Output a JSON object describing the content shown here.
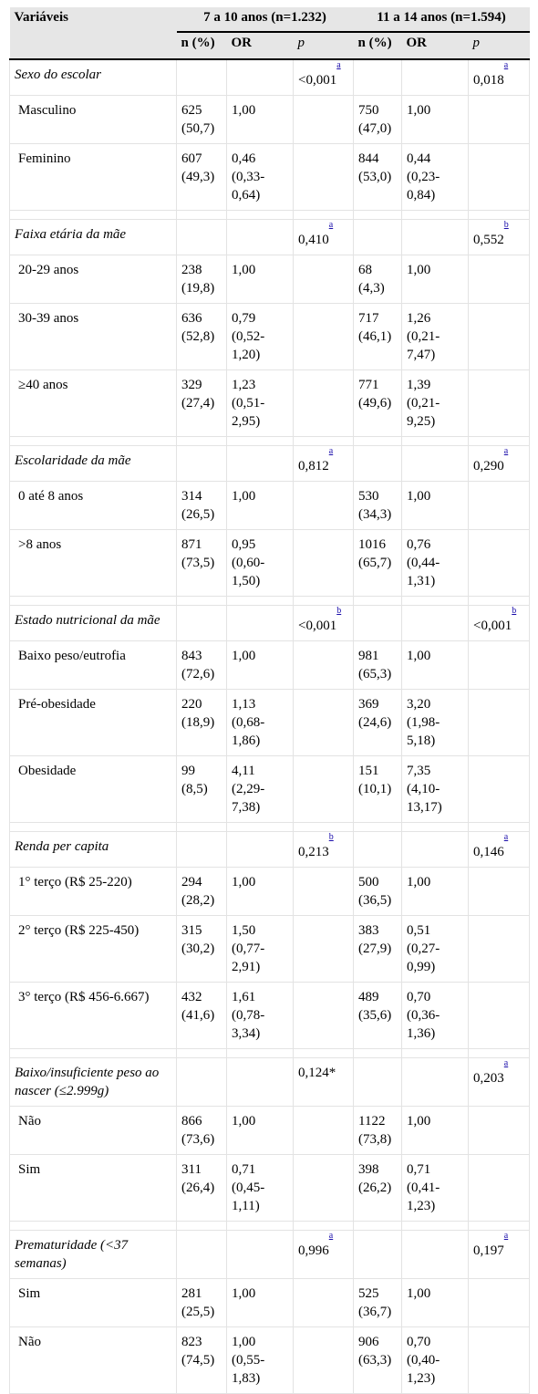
{
  "header": {
    "variables_label": "Variáveis",
    "group1_label": "7 a 10 anos (n=1.232)",
    "group2_label": "11 a 14 anos (n=1.594)",
    "n_pct_label": "n (%)",
    "or_label": "OR",
    "p_label": "p"
  },
  "sections": [
    {
      "title": "Sexo do escolar",
      "p1": "<0,001",
      "sup1": "a",
      "p2": "0,018",
      "sup2": "a",
      "rows": [
        {
          "label": "Masculino",
          "n1": "625 (50,7)",
          "or1": "1,00",
          "n2": "750 (47,0)",
          "or2": "1,00"
        },
        {
          "label": "Feminino",
          "n1": "607 (49,3)",
          "or1": "0,46 (0,33-0,64)",
          "n2": "844 (53,0)",
          "or2": "0,44 (0,23-0,84)"
        }
      ]
    },
    {
      "title": "Faixa etária da mãe",
      "p1": "0,410",
      "sup1": "a",
      "p2": "0,552",
      "sup2": "b",
      "rows": [
        {
          "label": "20-29 anos",
          "n1": "238 (19,8)",
          "or1": "1,00",
          "n2": "68 (4,3)",
          "or2": "1,00"
        },
        {
          "label": "30-39 anos",
          "n1": "636 (52,8)",
          "or1": "0,79 (0,52-1,20)",
          "n2": "717 (46,1)",
          "or2": "1,26 (0,21-7,47)"
        },
        {
          "label": "≥40 anos",
          "n1": "329 (27,4)",
          "or1": "1,23 (0,51-2,95)",
          "n2": "771 (49,6)",
          "or2": "1,39 (0,21-9,25)"
        }
      ]
    },
    {
      "title": "Escolaridade da mãe",
      "p1": "0,812",
      "sup1": "a",
      "p2": "0,290",
      "sup2": "a",
      "rows": [
        {
          "label": "0 até 8 anos",
          "n1": "314 (26,5)",
          "or1": "1,00",
          "n2": "530 (34,3)",
          "or2": "1,00"
        },
        {
          "label": ">8 anos",
          "n1": "871 (73,5)",
          "or1": "0,95 (0,60-1,50)",
          "n2": "1016 (65,7)",
          "or2": "0,76 (0,44-1,31)"
        }
      ]
    },
    {
      "title": "Estado nutricional da mãe",
      "p1": "<0,001",
      "sup1": "b",
      "p2": "<0,001",
      "sup2": "b",
      "rows": [
        {
          "label": "Baixo peso/eutrofia",
          "n1": "843 (72,6)",
          "or1": "1,00",
          "n2": "981 (65,3)",
          "or2": "1,00"
        },
        {
          "label": "Pré-obesidade",
          "n1": "220 (18,9)",
          "or1": "1,13 (0,68-1,86)",
          "n2": "369 (24,6)",
          "or2": "3,20 (1,98-5,18)"
        },
        {
          "label": "Obesidade",
          "n1": "99 (8,5)",
          "or1": "4,11 (2,29-7,38)",
          "n2": "151 (10,1)",
          "or2": "7,35 (4,10-13,17)"
        }
      ]
    },
    {
      "title": "Renda per capita",
      "p1": "0,213",
      "sup1": "b",
      "p2": "0,146",
      "sup2": "a",
      "rows": [
        {
          "label": "1° terço (R$ 25-220)",
          "n1": "294 (28,2)",
          "or1": "1,00",
          "n2": "500 (36,5)",
          "or2": "1,00"
        },
        {
          "label": "2° terço (R$ 225-450)",
          "n1": "315 (30,2)",
          "or1": "1,50 (0,77-2,91)",
          "n2": "383 (27,9)",
          "or2": "0,51 (0,27-0,99)"
        },
        {
          "label": "3° terço (R$ 456-6.667)",
          "n1": "432 (41,6)",
          "or1": "1,61 (0,78-3,34)",
          "n2": "489 (35,6)",
          "or2": "0,70 (0,36-1,36)"
        }
      ]
    },
    {
      "title": "Baixo/insuficiente peso ao nascer (≤2.999g)",
      "p1": "0,124*",
      "sup1": "",
      "p2": "0,203",
      "sup2": "a",
      "rows": [
        {
          "label": "Não",
          "n1": "866 (73,6)",
          "or1": "1,00",
          "n2": "1122 (73,8)",
          "or2": "1,00"
        },
        {
          "label": "Sim",
          "n1": "311 (26,4)",
          "or1": "0,71 (0,45-1,11)",
          "n2": "398 (26,2)",
          "or2": "0,71 (0,41-1,23)"
        }
      ]
    },
    {
      "title": "Prematuridade (<37 semanas)",
      "p1": "0,996",
      "sup1": "a",
      "p2": "0,197",
      "sup2": "a",
      "rows": [
        {
          "label": "Sim",
          "n1": "281 (25,5)",
          "or1": "1,00",
          "n2": "525 (36,7)",
          "or2": "1,00"
        },
        {
          "label": "Não",
          "n1": "823 (74,5)",
          "or1": "1,00 (0,55-1,83)",
          "n2": "906 (63,3)",
          "or2": "0,70 (0,40-1,23)"
        }
      ]
    }
  ]
}
